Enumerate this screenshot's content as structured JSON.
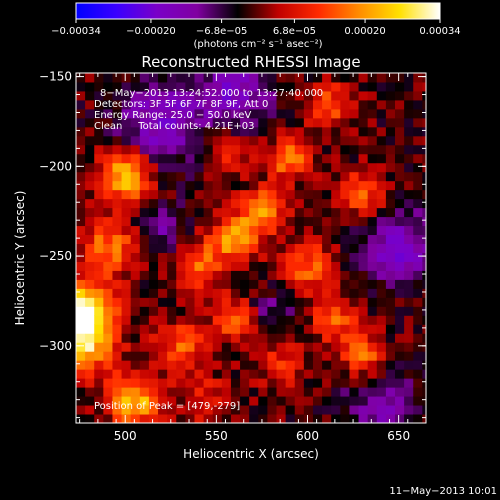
{
  "chart_data": {
    "type": "heatmap",
    "title": "Reconstructed RHESSI Image",
    "xlabel": "Heliocentric X (arcsec)",
    "ylabel": "Heliocentric Y (arcsec)",
    "xlim": [
      473,
      665
    ],
    "ylim": [
      -343,
      -148
    ],
    "x_ticks": [
      500,
      550,
      600,
      650
    ],
    "y_ticks": [
      -150,
      -200,
      -250,
      -300
    ],
    "x_tick_labels": [
      "500",
      "550",
      "600",
      "650"
    ],
    "y_tick_labels": [
      "−150",
      "−200",
      "−250",
      "−300"
    ],
    "colorbar": {
      "min": -0.00034,
      "max": 0.00034,
      "ticks": [
        -0.00034,
        -0.0002,
        -6.8e-05,
        6.8e-05,
        0.0002,
        0.00034
      ],
      "tick_labels": [
        "−0.00034",
        "−0.00020",
        "−6.8e−05",
        "6.8e−05",
        "0.00020",
        "0.00034"
      ],
      "units": "(photons cm⁻² s⁻¹ asec⁻²)",
      "colors": [
        "#0000ff",
        "#3a00ff",
        "#7a00c8",
        "#8000a0",
        "#000000",
        "#c00000",
        "#ff2a00",
        "#ff8c00",
        "#ffe000",
        "#ffffff"
      ]
    },
    "annotations": [
      "8−May−2013 13:24:52.000 to 13:27:40.000",
      "Detectors: 3F 5F 6F 7F 8F 9F, Att 0",
      "Energy Range: 25.0 − 50.0 keV",
      "Clean     Total counts: 4.21E+03"
    ],
    "peak": [
      479,
      -279
    ],
    "peak_label": "Position of Peak = [479,-279]",
    "sources": [
      {
        "x": 477,
        "y": -282,
        "amp": 1.0,
        "s": 12
      },
      {
        "x": 477,
        "y": -300,
        "amp": 0.6,
        "s": 12
      },
      {
        "x": 500,
        "y": -205,
        "amp": 0.8,
        "s": 10
      },
      {
        "x": 492,
        "y": -245,
        "amp": 0.55,
        "s": 11
      },
      {
        "x": 505,
        "y": -330,
        "amp": 0.75,
        "s": 10
      },
      {
        "x": 530,
        "y": -300,
        "amp": 0.45,
        "s": 10
      },
      {
        "x": 540,
        "y": -255,
        "amp": 0.5,
        "s": 10
      },
      {
        "x": 560,
        "y": -240,
        "amp": 0.6,
        "s": 9
      },
      {
        "x": 575,
        "y": -225,
        "amp": 0.6,
        "s": 9
      },
      {
        "x": 590,
        "y": -195,
        "amp": 0.55,
        "s": 9
      },
      {
        "x": 600,
        "y": -255,
        "amp": 0.5,
        "s": 10
      },
      {
        "x": 615,
        "y": -285,
        "amp": 0.45,
        "s": 9
      },
      {
        "x": 630,
        "y": -215,
        "amp": 0.5,
        "s": 9
      },
      {
        "x": 630,
        "y": -305,
        "amp": 0.55,
        "s": 8
      },
      {
        "x": 612,
        "y": -165,
        "amp": 0.45,
        "s": 9
      },
      {
        "x": 560,
        "y": -285,
        "amp": 0.45,
        "s": 9
      },
      {
        "x": 545,
        "y": -330,
        "amp": 0.3,
        "s": 10
      },
      {
        "x": 585,
        "y": -310,
        "amp": 0.3,
        "s": 10
      },
      {
        "x": 555,
        "y": -190,
        "amp": 0.35,
        "s": 9
      },
      {
        "x": 520,
        "y": -175,
        "amp": -0.5,
        "s": 16
      },
      {
        "x": 560,
        "y": -160,
        "amp": -0.45,
        "s": 14
      },
      {
        "x": 650,
        "y": -245,
        "amp": -0.5,
        "s": 14
      },
      {
        "x": 640,
        "y": -335,
        "amp": -0.35,
        "s": 14
      },
      {
        "x": 520,
        "y": -235,
        "amp": -0.3,
        "s": 10
      },
      {
        "x": 580,
        "y": -280,
        "amp": -0.25,
        "s": 9
      }
    ]
  },
  "footer": {
    "timestamp": "11−May−2013 10:01"
  }
}
